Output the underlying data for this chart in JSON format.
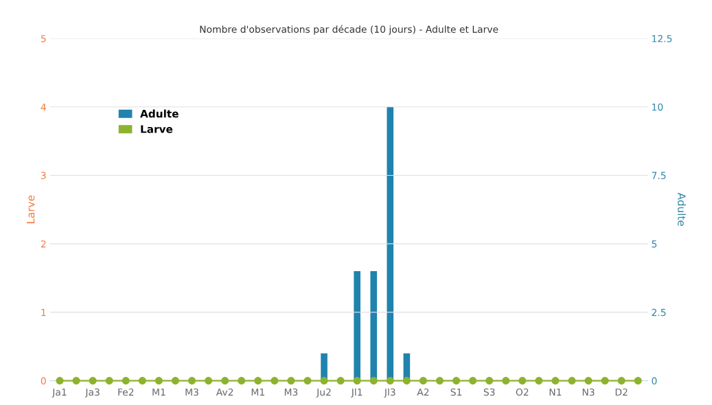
{
  "chart_data": {
    "type": "bar",
    "title": "Nombre d'observations par décade (10 jours) - Adulte et Larve",
    "categories": [
      "Ja1",
      null,
      "Ja3",
      null,
      "Fe2",
      null,
      "M1",
      null,
      "M3",
      null,
      "Av2",
      null,
      "M1",
      null,
      "M3",
      null,
      "Ju2",
      null,
      "Jl1",
      null,
      "Jl3",
      null,
      "A2",
      null,
      "S1",
      null,
      "S3",
      null,
      "O2",
      null,
      "N1",
      null,
      "N3",
      null,
      "D2",
      null
    ],
    "series": [
      {
        "name": "Adulte",
        "axis": "y2",
        "color": "#1f83ad",
        "values": [
          0,
          0,
          0,
          0,
          0,
          0,
          0,
          0,
          0,
          0,
          0,
          0,
          0,
          0,
          0,
          0,
          1,
          0,
          4,
          4,
          10,
          1,
          0,
          0,
          0,
          0,
          0,
          0,
          0,
          0,
          0,
          0,
          0,
          0,
          0,
          0
        ]
      },
      {
        "name": "Larve",
        "type": "line",
        "color": "#8db32e",
        "values": [
          0,
          0,
          0,
          0,
          0,
          0,
          0,
          0,
          0,
          0,
          0,
          0,
          0,
          0,
          0,
          0,
          0,
          0,
          0,
          0,
          0,
          0,
          0,
          0,
          0,
          0,
          0,
          0,
          0,
          0,
          0,
          0,
          0,
          0,
          0,
          0
        ]
      }
    ],
    "ylabel": "Larve",
    "y2label": "Adulte",
    "ylim": [
      0,
      5
    ],
    "yticks": [
      0,
      1,
      2,
      3,
      4,
      5
    ],
    "y2lim": [
      0,
      12.5
    ],
    "y2ticks": [
      0,
      2.5,
      5,
      7.5,
      10,
      12.5
    ],
    "grid": "y",
    "legend": "top left",
    "marker": "circle",
    "line_style": "solid"
  }
}
